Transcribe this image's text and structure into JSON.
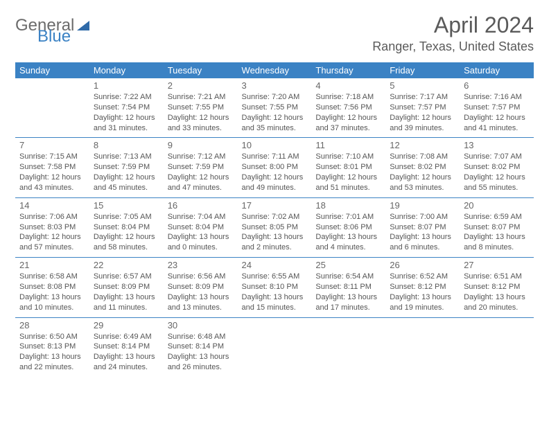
{
  "logo": {
    "part1": "General",
    "part2": "Blue"
  },
  "title": "April 2024",
  "location": "Ranger, Texas, United States",
  "header_bg": "#3b82c4",
  "weekdays": [
    "Sunday",
    "Monday",
    "Tuesday",
    "Wednesday",
    "Thursday",
    "Friday",
    "Saturday"
  ],
  "weeks": [
    [
      null,
      {
        "d": "1",
        "sr": "7:22 AM",
        "ss": "7:54 PM",
        "dl": "12 hours and 31 minutes."
      },
      {
        "d": "2",
        "sr": "7:21 AM",
        "ss": "7:55 PM",
        "dl": "12 hours and 33 minutes."
      },
      {
        "d": "3",
        "sr": "7:20 AM",
        "ss": "7:55 PM",
        "dl": "12 hours and 35 minutes."
      },
      {
        "d": "4",
        "sr": "7:18 AM",
        "ss": "7:56 PM",
        "dl": "12 hours and 37 minutes."
      },
      {
        "d": "5",
        "sr": "7:17 AM",
        "ss": "7:57 PM",
        "dl": "12 hours and 39 minutes."
      },
      {
        "d": "6",
        "sr": "7:16 AM",
        "ss": "7:57 PM",
        "dl": "12 hours and 41 minutes."
      }
    ],
    [
      {
        "d": "7",
        "sr": "7:15 AM",
        "ss": "7:58 PM",
        "dl": "12 hours and 43 minutes."
      },
      {
        "d": "8",
        "sr": "7:13 AM",
        "ss": "7:59 PM",
        "dl": "12 hours and 45 minutes."
      },
      {
        "d": "9",
        "sr": "7:12 AM",
        "ss": "7:59 PM",
        "dl": "12 hours and 47 minutes."
      },
      {
        "d": "10",
        "sr": "7:11 AM",
        "ss": "8:00 PM",
        "dl": "12 hours and 49 minutes."
      },
      {
        "d": "11",
        "sr": "7:10 AM",
        "ss": "8:01 PM",
        "dl": "12 hours and 51 minutes."
      },
      {
        "d": "12",
        "sr": "7:08 AM",
        "ss": "8:02 PM",
        "dl": "12 hours and 53 minutes."
      },
      {
        "d": "13",
        "sr": "7:07 AM",
        "ss": "8:02 PM",
        "dl": "12 hours and 55 minutes."
      }
    ],
    [
      {
        "d": "14",
        "sr": "7:06 AM",
        "ss": "8:03 PM",
        "dl": "12 hours and 57 minutes."
      },
      {
        "d": "15",
        "sr": "7:05 AM",
        "ss": "8:04 PM",
        "dl": "12 hours and 58 minutes."
      },
      {
        "d": "16",
        "sr": "7:04 AM",
        "ss": "8:04 PM",
        "dl": "13 hours and 0 minutes."
      },
      {
        "d": "17",
        "sr": "7:02 AM",
        "ss": "8:05 PM",
        "dl": "13 hours and 2 minutes."
      },
      {
        "d": "18",
        "sr": "7:01 AM",
        "ss": "8:06 PM",
        "dl": "13 hours and 4 minutes."
      },
      {
        "d": "19",
        "sr": "7:00 AM",
        "ss": "8:07 PM",
        "dl": "13 hours and 6 minutes."
      },
      {
        "d": "20",
        "sr": "6:59 AM",
        "ss": "8:07 PM",
        "dl": "13 hours and 8 minutes."
      }
    ],
    [
      {
        "d": "21",
        "sr": "6:58 AM",
        "ss": "8:08 PM",
        "dl": "13 hours and 10 minutes."
      },
      {
        "d": "22",
        "sr": "6:57 AM",
        "ss": "8:09 PM",
        "dl": "13 hours and 11 minutes."
      },
      {
        "d": "23",
        "sr": "6:56 AM",
        "ss": "8:09 PM",
        "dl": "13 hours and 13 minutes."
      },
      {
        "d": "24",
        "sr": "6:55 AM",
        "ss": "8:10 PM",
        "dl": "13 hours and 15 minutes."
      },
      {
        "d": "25",
        "sr": "6:54 AM",
        "ss": "8:11 PM",
        "dl": "13 hours and 17 minutes."
      },
      {
        "d": "26",
        "sr": "6:52 AM",
        "ss": "8:12 PM",
        "dl": "13 hours and 19 minutes."
      },
      {
        "d": "27",
        "sr": "6:51 AM",
        "ss": "8:12 PM",
        "dl": "13 hours and 20 minutes."
      }
    ],
    [
      {
        "d": "28",
        "sr": "6:50 AM",
        "ss": "8:13 PM",
        "dl": "13 hours and 22 minutes."
      },
      {
        "d": "29",
        "sr": "6:49 AM",
        "ss": "8:14 PM",
        "dl": "13 hours and 24 minutes."
      },
      {
        "d": "30",
        "sr": "6:48 AM",
        "ss": "8:14 PM",
        "dl": "13 hours and 26 minutes."
      },
      null,
      null,
      null,
      null
    ]
  ],
  "labels": {
    "sunrise": "Sunrise: ",
    "sunset": "Sunset: ",
    "daylight": "Daylight: "
  }
}
